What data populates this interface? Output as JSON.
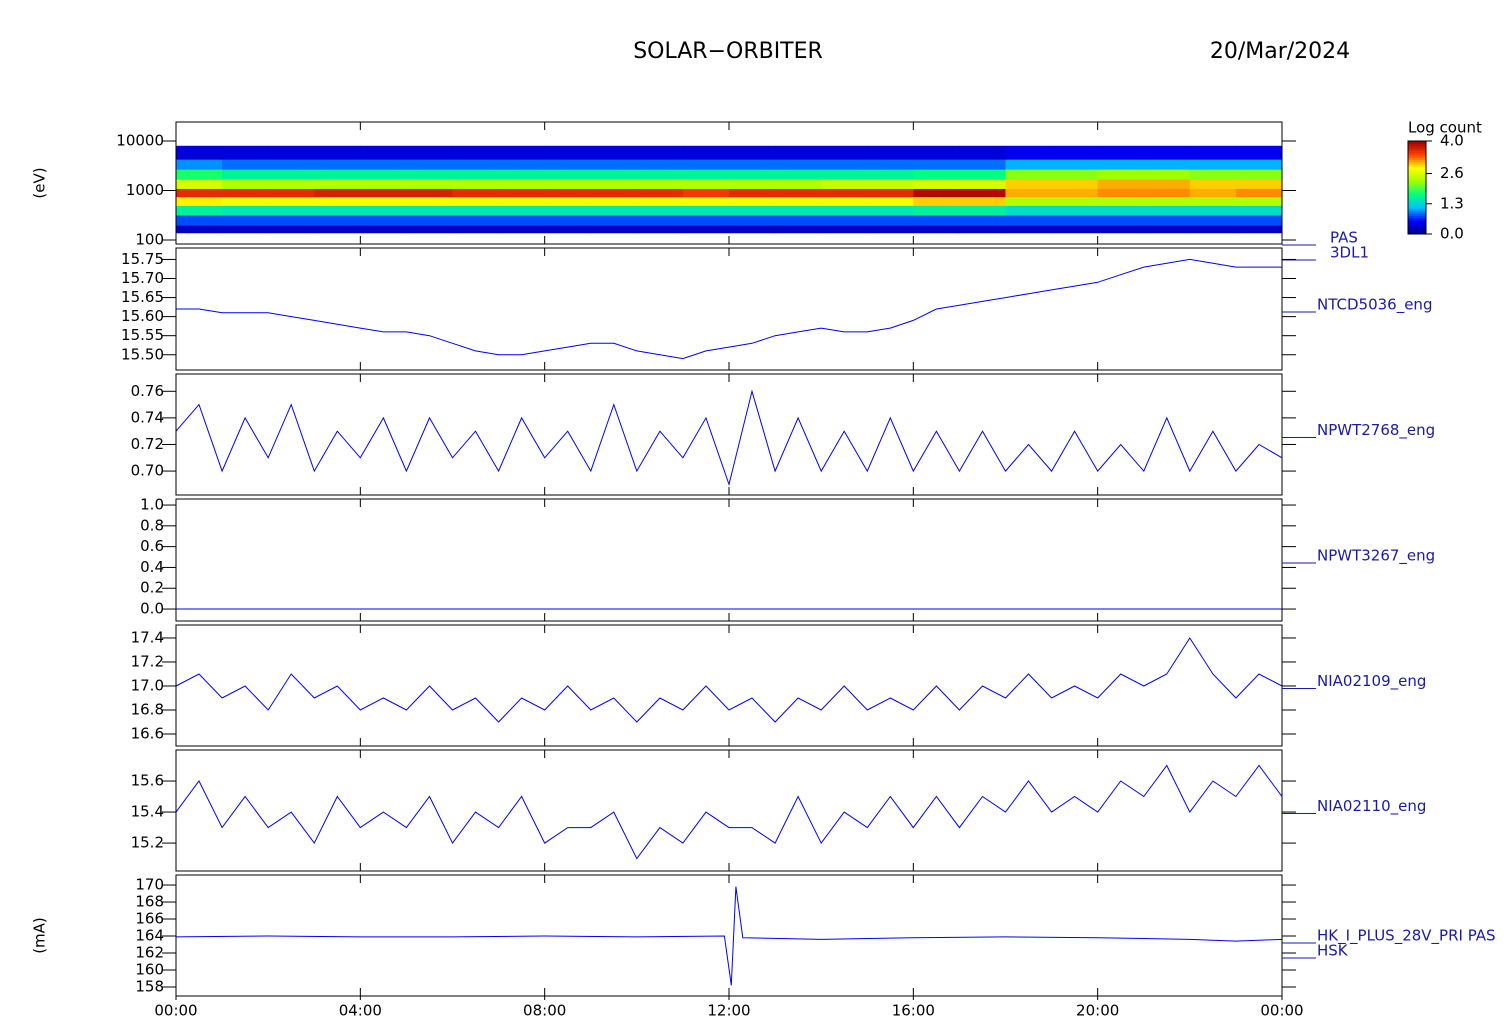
{
  "header": {
    "title": "SOLAR−ORBITER",
    "date": "20/Mar/2024"
  },
  "x_axis": {
    "xlim": [
      0,
      24
    ],
    "xticks": [
      {
        "value": 0,
        "label": "00:00"
      },
      {
        "value": 4,
        "label": "04:00"
      },
      {
        "value": 8,
        "label": "08:00"
      },
      {
        "value": 12,
        "label": "12:00"
      },
      {
        "value": 16,
        "label": "16:00"
      },
      {
        "value": 20,
        "label": "20:00"
      },
      {
        "value": 24,
        "label": "00:00"
      }
    ]
  },
  "chart_data": [
    {
      "type": "heatmap",
      "ylabel": "(eV)",
      "name_lines": [
        "PAS",
        "3DL1"
      ],
      "log_y": true,
      "ylim": [
        83,
        24200
      ],
      "yticks": [
        100,
        1000,
        10000
      ],
      "colorbar_title": "Log count",
      "clim": [
        0,
        4
      ],
      "colorbar_ticks": [
        {
          "value": 0,
          "label": "0.0"
        },
        {
          "value": 1.3,
          "label": "1.3"
        },
        {
          "value": 2.6,
          "label": "2.6"
        },
        {
          "value": 4,
          "label": "4.0"
        }
      ],
      "colorscale": [
        "#000080",
        "#0000ff",
        "#00c0ff",
        "#00ff80",
        "#a0ff00",
        "#ffff00",
        "#ff4000",
        "#a00000"
      ],
      "x_bins": [
        0,
        1,
        2,
        3,
        4,
        5,
        6,
        7,
        8,
        9,
        10,
        11,
        12,
        13,
        14,
        15,
        16,
        17,
        18,
        19,
        20,
        21,
        22,
        23,
        24
      ],
      "y_bins": [
        140,
        200,
        320,
        500,
        750,
        1100,
        1700,
        2700,
        4300,
        8000
      ],
      "z": [
        [
          0.3,
          0.3,
          0.3,
          0.3,
          0.3,
          0.3,
          0.3,
          0.3,
          0.3,
          0.3,
          0.3,
          0.3,
          0.3,
          0.3,
          0.3,
          0.3,
          0.3,
          0.3,
          0.3,
          0.3,
          0.3,
          0.3,
          0.3,
          0.3
        ],
        [
          0.8,
          0.8,
          0.8,
          0.8,
          0.8,
          0.8,
          0.8,
          0.8,
          0.8,
          0.8,
          0.8,
          0.8,
          0.8,
          0.8,
          0.8,
          0.8,
          0.8,
          0.8,
          0.8,
          0.8,
          0.8,
          0.8,
          0.8,
          0.8
        ],
        [
          1.6,
          1.5,
          1.5,
          1.5,
          1.5,
          1.5,
          1.5,
          1.5,
          1.5,
          1.5,
          1.5,
          1.5,
          1.5,
          1.5,
          1.5,
          1.5,
          1.6,
          1.6,
          1.4,
          1.4,
          1.4,
          1.4,
          1.4,
          1.4
        ],
        [
          2.9,
          2.8,
          2.8,
          2.8,
          2.8,
          2.8,
          2.8,
          2.8,
          2.8,
          2.8,
          2.8,
          2.8,
          2.8,
          2.8,
          2.8,
          2.8,
          3.0,
          3.0,
          2.4,
          2.4,
          2.4,
          2.4,
          2.4,
          2.4
        ],
        [
          3.6,
          3.6,
          3.6,
          3.7,
          3.7,
          3.7,
          3.6,
          3.6,
          3.6,
          3.6,
          3.6,
          3.5,
          3.6,
          3.6,
          3.6,
          3.6,
          3.9,
          3.9,
          3.1,
          3.1,
          3.2,
          3.2,
          3.1,
          3.2
        ],
        [
          2.6,
          2.4,
          2.4,
          2.4,
          2.4,
          2.4,
          2.4,
          2.4,
          2.4,
          2.4,
          2.4,
          2.4,
          2.4,
          2.4,
          2.5,
          2.5,
          2.6,
          2.6,
          3.0,
          3.0,
          3.1,
          3.1,
          3.0,
          3.0
        ],
        [
          1.8,
          1.6,
          1.6,
          1.6,
          1.6,
          1.6,
          1.6,
          1.6,
          1.6,
          1.6,
          1.6,
          1.6,
          1.6,
          1.6,
          1.6,
          1.6,
          1.7,
          1.7,
          2.2,
          2.2,
          2.3,
          2.3,
          2.2,
          2.2
        ],
        [
          1.0,
          0.9,
          0.9,
          0.9,
          0.9,
          0.9,
          0.9,
          0.9,
          0.9,
          0.9,
          0.9,
          0.9,
          0.9,
          0.9,
          0.9,
          0.9,
          0.9,
          0.9,
          1.1,
          1.1,
          1.1,
          1.1,
          1.1,
          1.1
        ],
        [
          0.4,
          0.4,
          0.4,
          0.4,
          0.4,
          0.4,
          0.4,
          0.4,
          0.4,
          0.4,
          0.4,
          0.4,
          0.4,
          0.4,
          0.4,
          0.4,
          0.4,
          0.4,
          0.5,
          0.5,
          0.5,
          0.5,
          0.5,
          0.5
        ]
      ]
    },
    {
      "type": "line",
      "name_lines": [
        "NTCD5036_eng"
      ],
      "color": "#0000ff",
      "ylim": [
        15.46,
        15.78
      ],
      "yticks": [
        {
          "value": 15.5,
          "label": "15.50"
        },
        {
          "value": 15.55,
          "label": "15.55"
        },
        {
          "value": 15.6,
          "label": "15.60"
        },
        {
          "value": 15.65,
          "label": "15.65"
        },
        {
          "value": 15.7,
          "label": "15.70"
        },
        {
          "value": 15.75,
          "label": "15.75"
        }
      ],
      "x": [
        0,
        0.5,
        1,
        1.5,
        2,
        2.5,
        3,
        3.5,
        4,
        4.5,
        5,
        5.5,
        6,
        6.5,
        7,
        7.5,
        8,
        8.5,
        9,
        9.5,
        10,
        10.5,
        11,
        11.5,
        12,
        12.5,
        13,
        13.5,
        14,
        14.5,
        15,
        15.5,
        16,
        16.5,
        17,
        17.5,
        18,
        18.5,
        19,
        19.5,
        20,
        20.5,
        21,
        21.5,
        22,
        22.5,
        23,
        23.5,
        24
      ],
      "values": [
        15.62,
        15.62,
        15.61,
        15.61,
        15.61,
        15.6,
        15.59,
        15.58,
        15.57,
        15.56,
        15.56,
        15.55,
        15.53,
        15.51,
        15.5,
        15.5,
        15.51,
        15.52,
        15.53,
        15.53,
        15.51,
        15.5,
        15.49,
        15.51,
        15.52,
        15.53,
        15.55,
        15.56,
        15.57,
        15.56,
        15.56,
        15.57,
        15.59,
        15.62,
        15.63,
        15.64,
        15.65,
        15.66,
        15.67,
        15.68,
        15.69,
        15.71,
        15.73,
        15.74,
        15.75,
        15.74,
        15.73,
        15.73,
        15.73
      ]
    },
    {
      "type": "line",
      "name_lines": [
        "NPWT2768_eng"
      ],
      "color": "#0000ff",
      "ylim": [
        0.682,
        0.773
      ],
      "yticks": [
        {
          "value": 0.7,
          "label": "0.70"
        },
        0.72,
        0.74,
        0.76
      ],
      "x": [
        0,
        0.5,
        1,
        1.5,
        2,
        2.5,
        3,
        3.5,
        4,
        4.5,
        5,
        5.5,
        6,
        6.5,
        7,
        7.5,
        8,
        8.5,
        9,
        9.5,
        10,
        10.5,
        11,
        11.5,
        12,
        12.5,
        13,
        13.5,
        14,
        14.5,
        15,
        15.5,
        16,
        16.5,
        17,
        17.5,
        18,
        18.5,
        19,
        19.5,
        20,
        20.5,
        21,
        21.5,
        22,
        22.5,
        23,
        23.5,
        24
      ],
      "values": [
        0.73,
        0.75,
        0.7,
        0.74,
        0.71,
        0.75,
        0.7,
        0.73,
        0.71,
        0.74,
        0.7,
        0.74,
        0.71,
        0.73,
        0.7,
        0.74,
        0.71,
        0.73,
        0.7,
        0.75,
        0.7,
        0.73,
        0.71,
        0.74,
        0.69,
        0.76,
        0.7,
        0.74,
        0.7,
        0.73,
        0.7,
        0.74,
        0.7,
        0.73,
        0.7,
        0.73,
        0.7,
        0.72,
        0.7,
        0.73,
        0.7,
        0.72,
        0.7,
        0.74,
        0.7,
        0.73,
        0.7,
        0.72,
        0.71
      ]
    },
    {
      "type": "line",
      "name_lines": [
        "NPWT3267_eng"
      ],
      "color": "#0000ff",
      "ylim": [
        -0.115,
        1.058
      ],
      "yticks": [
        {
          "value": 0,
          "label": "0.0"
        },
        0.2,
        0.4,
        0.6,
        0.8,
        {
          "value": 1,
          "label": "1.0"
        }
      ],
      "x": [
        0,
        24
      ],
      "values": [
        0,
        0
      ]
    },
    {
      "type": "line",
      "name_lines": [
        "NIA02109_eng"
      ],
      "color": "#0000ff",
      "ylim": [
        16.5,
        17.508
      ],
      "yticks": [
        16.6,
        16.8,
        {
          "value": 17,
          "label": "17.0"
        },
        17.2,
        17.4
      ],
      "x": [
        0,
        0.5,
        1,
        1.5,
        2,
        2.5,
        3,
        3.5,
        4,
        4.5,
        5,
        5.5,
        6,
        6.5,
        7,
        7.5,
        8,
        8.5,
        9,
        9.5,
        10,
        10.5,
        11,
        11.5,
        12,
        12.5,
        13,
        13.5,
        14,
        14.5,
        15,
        15.5,
        16,
        16.5,
        17,
        17.5,
        18,
        18.5,
        19,
        19.5,
        20,
        20.5,
        21,
        21.5,
        22,
        22.5,
        23,
        23.5,
        24
      ],
      "values": [
        17.0,
        17.1,
        16.9,
        17.0,
        16.8,
        17.1,
        16.9,
        17.0,
        16.8,
        16.9,
        16.8,
        17.0,
        16.8,
        16.9,
        16.7,
        16.9,
        16.8,
        17.0,
        16.8,
        16.9,
        16.7,
        16.9,
        16.8,
        17.0,
        16.8,
        16.9,
        16.7,
        16.9,
        16.8,
        17.0,
        16.8,
        16.9,
        16.8,
        17.0,
        16.8,
        17.0,
        16.9,
        17.1,
        16.9,
        17.0,
        16.9,
        17.1,
        17.0,
        17.1,
        17.4,
        17.1,
        16.9,
        17.1,
        17.0
      ]
    },
    {
      "type": "line",
      "name_lines": [
        "NIA02110_eng"
      ],
      "color": "#0000ff",
      "ylim": [
        15.02,
        15.8
      ],
      "yticks": [
        15.2,
        15.4,
        15.6
      ],
      "x": [
        0,
        0.5,
        1,
        1.5,
        2,
        2.5,
        3,
        3.5,
        4,
        4.5,
        5,
        5.5,
        6,
        6.5,
        7,
        7.5,
        8,
        8.5,
        9,
        9.5,
        10,
        10.5,
        11,
        11.5,
        12,
        12.5,
        13,
        13.5,
        14,
        14.5,
        15,
        15.5,
        16,
        16.5,
        17,
        17.5,
        18,
        18.5,
        19,
        19.5,
        20,
        20.5,
        21,
        21.5,
        22,
        22.5,
        23,
        23.5,
        24
      ],
      "values": [
        15.4,
        15.6,
        15.3,
        15.5,
        15.3,
        15.4,
        15.2,
        15.5,
        15.3,
        15.4,
        15.3,
        15.5,
        15.2,
        15.4,
        15.3,
        15.5,
        15.2,
        15.3,
        15.3,
        15.4,
        15.1,
        15.3,
        15.2,
        15.4,
        15.3,
        15.3,
        15.2,
        15.5,
        15.2,
        15.4,
        15.3,
        15.5,
        15.3,
        15.5,
        15.3,
        15.5,
        15.4,
        15.6,
        15.4,
        15.5,
        15.4,
        15.6,
        15.5,
        15.7,
        15.4,
        15.6,
        15.5,
        15.7,
        15.5
      ]
    },
    {
      "type": "line",
      "ylabel": "(mA)",
      "name_lines": [
        "HK_I_PLUS_28V_PRI PAS",
        "HSK"
      ],
      "color": "#0000ff",
      "ylim": [
        156.94,
        171.18
      ],
      "yticks": [
        158,
        160,
        162,
        164,
        166,
        168,
        170
      ],
      "x": [
        0,
        2,
        4,
        6,
        8,
        10,
        11.9,
        12.05,
        12.15,
        12.3,
        14,
        16,
        18,
        20,
        22,
        23,
        24
      ],
      "values": [
        163.9,
        164.0,
        163.9,
        163.9,
        164.0,
        163.9,
        164.0,
        158.2,
        169.8,
        163.8,
        163.6,
        163.8,
        163.9,
        163.8,
        163.6,
        163.4,
        163.6
      ]
    }
  ]
}
